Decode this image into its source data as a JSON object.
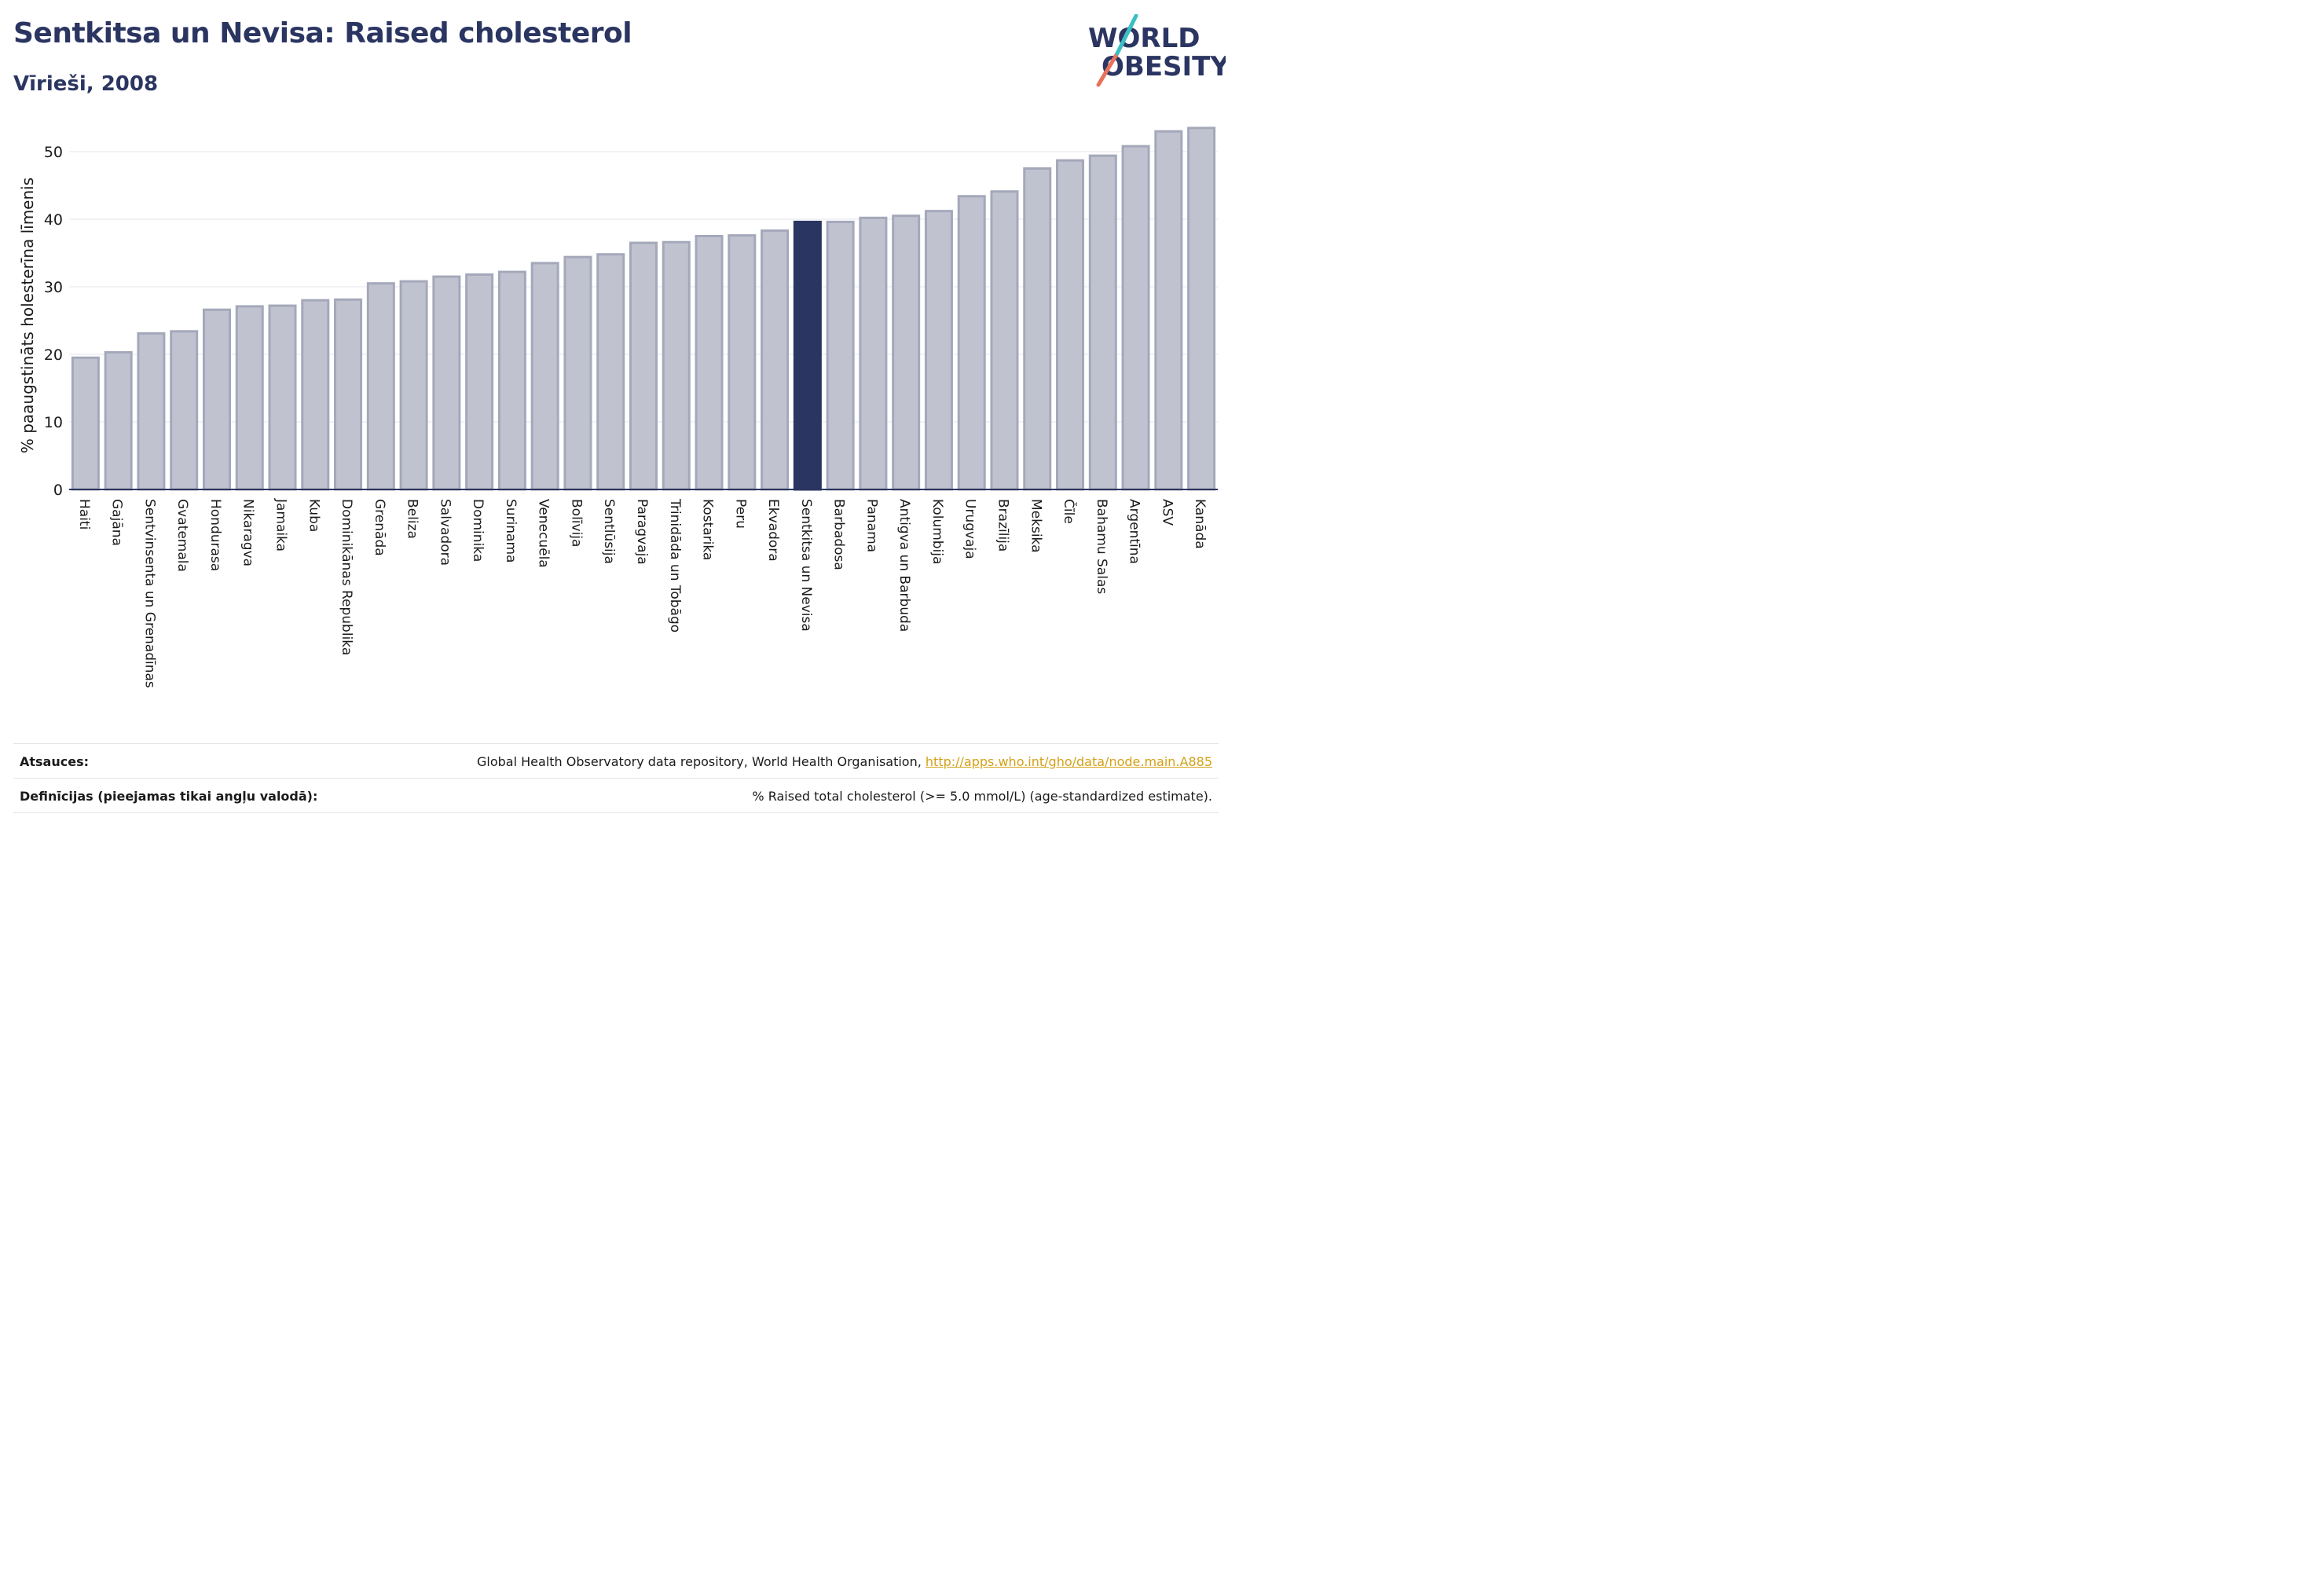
{
  "header": {
    "title": "Sentkitsa un Nevisa: Raised cholesterol",
    "subtitle": "Vīrieši, 2008"
  },
  "logo": {
    "line1": "WORLD",
    "line2": "OBESITY"
  },
  "colors": {
    "title": "#2b3561",
    "bar_fill": "#c0c3cf",
    "bar_stroke": "#a4a8ba",
    "highlight": "#2b3561",
    "grid": "#e4e6ec",
    "link": "#d4a017",
    "logo_slash_top": "#3bbfc4",
    "logo_slash_bottom": "#e8715a"
  },
  "chart_data": {
    "type": "bar",
    "ylabel": "% paaugstināts holesterīna līmenis",
    "ylim": [
      0,
      55
    ],
    "yticks": [
      0,
      10,
      20,
      30,
      40,
      50
    ],
    "grid": true,
    "highlight_category": "Sentkitsa un Nevisa",
    "categories": [
      "Haiti",
      "Gajāna",
      "Sentvinsenta un Grenadīnas",
      "Gvatemala",
      "Hondurasa",
      "Nikaragva",
      "Jamaika",
      "Kuba",
      "Dominikānas Republika",
      "Grenāda",
      "Beliza",
      "Salvadora",
      "Dominika",
      "Surinama",
      "Venecuēla",
      "Bolīvija",
      "Sentlūsija",
      "Paragvaja",
      "Trinidāda un Tobāgo",
      "Kostarika",
      "Peru",
      "Ekvadora",
      "Sentkitsa un Nevisa",
      "Barbadosa",
      "Panama",
      "Antigva un Barbuda",
      "Kolumbija",
      "Urugvaja",
      "Brazīlija",
      "Meksika",
      "Čīle",
      "Bahamu Salas",
      "Argentīna",
      "ASV",
      "Kanāda"
    ],
    "values": [
      19.5,
      20.3,
      23.1,
      23.4,
      26.6,
      27.1,
      27.2,
      28.0,
      28.1,
      30.5,
      30.8,
      31.5,
      31.8,
      32.2,
      33.5,
      34.4,
      34.8,
      36.5,
      36.6,
      37.5,
      37.6,
      38.3,
      39.6,
      39.6,
      40.2,
      40.5,
      41.2,
      43.4,
      44.1,
      47.5,
      48.7,
      49.4,
      50.8,
      53.0,
      53.5
    ]
  },
  "footer": {
    "sources_label": "Atsauces:",
    "sources_text": "Global Health Observatory data repository, World Health Organisation, ",
    "sources_link": "http://apps.who.int/gho/data/node.main.A885",
    "definitions_label": "Definīcijas (pieejamas tikai angļu valodā):",
    "definitions_text": "% Raised total cholesterol (>= 5.0 mmol/L) (age-standardized estimate)."
  }
}
